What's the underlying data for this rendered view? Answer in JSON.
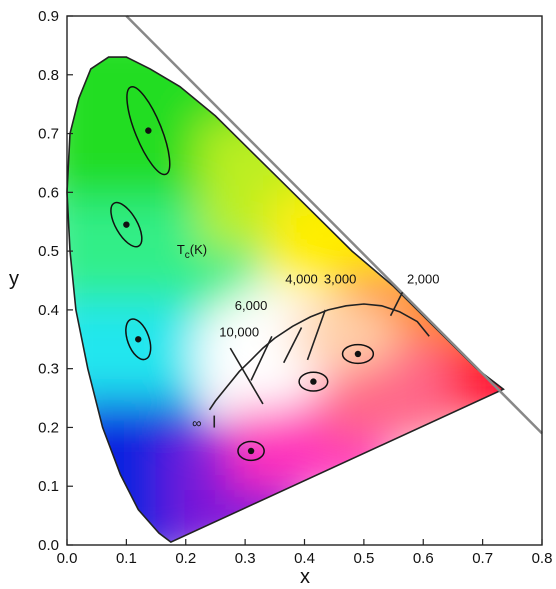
{
  "chart_data": {
    "type": "scatter",
    "title": "",
    "xlabel": "x",
    "ylabel": "y",
    "xlim": [
      0.0,
      0.8
    ],
    "ylim": [
      0.0,
      0.9
    ],
    "x_ticks": [
      "0.0",
      "0.1",
      "0.2",
      "0.3",
      "0.4",
      "0.5",
      "0.6",
      "0.7",
      "0.8"
    ],
    "y_ticks": [
      "0.0",
      "0.1",
      "0.2",
      "0.3",
      "0.4",
      "0.5",
      "0.6",
      "0.7",
      "0.8",
      "0.9"
    ],
    "grid": false,
    "spectral_locus": [
      [
        0.175,
        0.005
      ],
      [
        0.155,
        0.02
      ],
      [
        0.12,
        0.06
      ],
      [
        0.09,
        0.12
      ],
      [
        0.06,
        0.2
      ],
      [
        0.035,
        0.3
      ],
      [
        0.015,
        0.4
      ],
      [
        0.005,
        0.5
      ],
      [
        0.0,
        0.6
      ],
      [
        0.005,
        0.7
      ],
      [
        0.02,
        0.76
      ],
      [
        0.04,
        0.81
      ],
      [
        0.07,
        0.83
      ],
      [
        0.1,
        0.83
      ],
      [
        0.14,
        0.81
      ],
      [
        0.19,
        0.78
      ],
      [
        0.25,
        0.73
      ],
      [
        0.3,
        0.68
      ],
      [
        0.36,
        0.62
      ],
      [
        0.42,
        0.56
      ],
      [
        0.48,
        0.5
      ],
      [
        0.55,
        0.44
      ],
      [
        0.62,
        0.37
      ],
      [
        0.69,
        0.3
      ],
      [
        0.735,
        0.265
      ]
    ],
    "gamut_boundary_line": [
      [
        0.1,
        0.9
      ],
      [
        0.8,
        0.19
      ]
    ],
    "planckian_locus": [
      [
        0.24,
        0.23
      ],
      [
        0.25,
        0.245
      ],
      [
        0.27,
        0.27
      ],
      [
        0.29,
        0.295
      ],
      [
        0.31,
        0.315
      ],
      [
        0.33,
        0.335
      ],
      [
        0.35,
        0.352
      ],
      [
        0.38,
        0.372
      ],
      [
        0.41,
        0.388
      ],
      [
        0.44,
        0.4
      ],
      [
        0.47,
        0.407
      ],
      [
        0.5,
        0.41
      ],
      [
        0.53,
        0.407
      ],
      [
        0.56,
        0.397
      ],
      [
        0.59,
        0.38
      ],
      [
        0.61,
        0.355
      ]
    ],
    "isotherms": [
      {
        "label": "10,000",
        "p1": [
          0.275,
          0.335
        ],
        "p2": [
          0.33,
          0.24
        ],
        "label_at": [
          0.29,
          0.355
        ]
      },
      {
        "label": "6,000",
        "p1": [
          0.31,
          0.28
        ],
        "p2": [
          0.345,
          0.355
        ],
        "label_at": [
          0.31,
          0.4
        ]
      },
      {
        "label": "4,000",
        "p1": [
          0.365,
          0.31
        ],
        "p2": [
          0.395,
          0.37
        ],
        "label_at": [
          0.395,
          0.445
        ]
      },
      {
        "label": "3,000",
        "p1": [
          0.405,
          0.315
        ],
        "p2": [
          0.435,
          0.4
        ],
        "label_at": [
          0.46,
          0.445
        ]
      },
      {
        "label": "2,000",
        "p1": [
          0.545,
          0.39
        ],
        "p2": [
          0.565,
          0.43
        ],
        "label_at": [
          0.6,
          0.445
        ]
      }
    ],
    "infinity_marker": {
      "label": "∞",
      "at": [
        0.232,
        0.21
      ],
      "tick": [
        0.248,
        0.21
      ]
    },
    "tc_label": "Tc(K)",
    "tc_label_at": [
      0.185,
      0.495
    ],
    "points": [
      {
        "x": 0.137,
        "y": 0.705,
        "ellipse": {
          "rx": 0.022,
          "ry": 0.08,
          "angle": -22
        }
      },
      {
        "x": 0.1,
        "y": 0.545,
        "ellipse": {
          "rx": 0.018,
          "ry": 0.042,
          "angle": -30
        }
      },
      {
        "x": 0.12,
        "y": 0.35,
        "ellipse": {
          "rx": 0.018,
          "ry": 0.036,
          "angle": -20
        }
      },
      {
        "x": 0.31,
        "y": 0.16,
        "ellipse": {
          "rx": 0.022,
          "ry": 0.016,
          "angle": 0
        }
      },
      {
        "x": 0.415,
        "y": 0.278,
        "ellipse": {
          "rx": 0.024,
          "ry": 0.016,
          "angle": 0
        }
      },
      {
        "x": 0.49,
        "y": 0.325,
        "ellipse": {
          "rx": 0.026,
          "ry": 0.016,
          "angle": 0
        }
      }
    ]
  }
}
